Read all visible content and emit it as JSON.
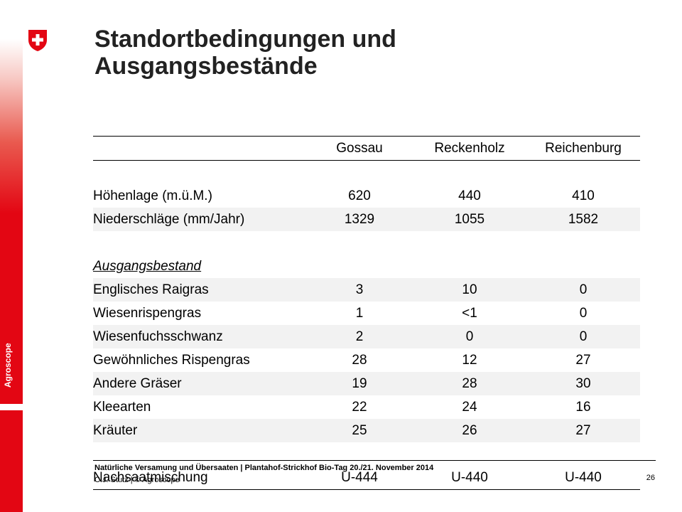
{
  "brand": {
    "name": "Agroscope"
  },
  "title": {
    "line1": "Standortbedingungen und",
    "line2": "Ausgangsbestände"
  },
  "table": {
    "columns": [
      "",
      "Gossau",
      "Reckenholz",
      "Reichenburg"
    ],
    "rows": [
      {
        "label": "Höhenlage (m.ü.M.)",
        "values": [
          "620",
          "440",
          "410"
        ]
      },
      {
        "label": "Niederschläge (mm/Jahr)",
        "values": [
          "1329",
          "1055",
          "1582"
        ]
      },
      {
        "label": "Ausgangsbestand",
        "values": [
          "",
          "",
          ""
        ]
      },
      {
        "label": "Englisches Raigras",
        "values": [
          "3",
          "10",
          "0"
        ]
      },
      {
        "label": "Wiesenrispengras",
        "values": [
          "1",
          "<1",
          "0"
        ]
      },
      {
        "label": "Wiesenfuchsschwanz",
        "values": [
          "2",
          "0",
          "0"
        ]
      },
      {
        "label": "Gewöhnliches Rispengras",
        "values": [
          "28",
          "12",
          "27"
        ]
      },
      {
        "label": "Andere Gräser",
        "values": [
          "19",
          "28",
          "30"
        ]
      },
      {
        "label": "Kleearten",
        "values": [
          "22",
          "24",
          "16"
        ]
      },
      {
        "label": "Kräuter",
        "values": [
          "25",
          "26",
          "27"
        ]
      },
      {
        "label": "Nachsaatmischung",
        "values": [
          "U-444",
          "U-440",
          "U-440"
        ]
      }
    ]
  },
  "footer": {
    "title": "Natürliche Versamung und Übersaaten | Plantahof-Strickhof Bio-Tag 20./21. November 2014",
    "author": "C.J. Stutz | © Agroscope",
    "page": "26"
  },
  "colors": {
    "accent": "#e30613",
    "row_shade": "#f2f2f2"
  }
}
